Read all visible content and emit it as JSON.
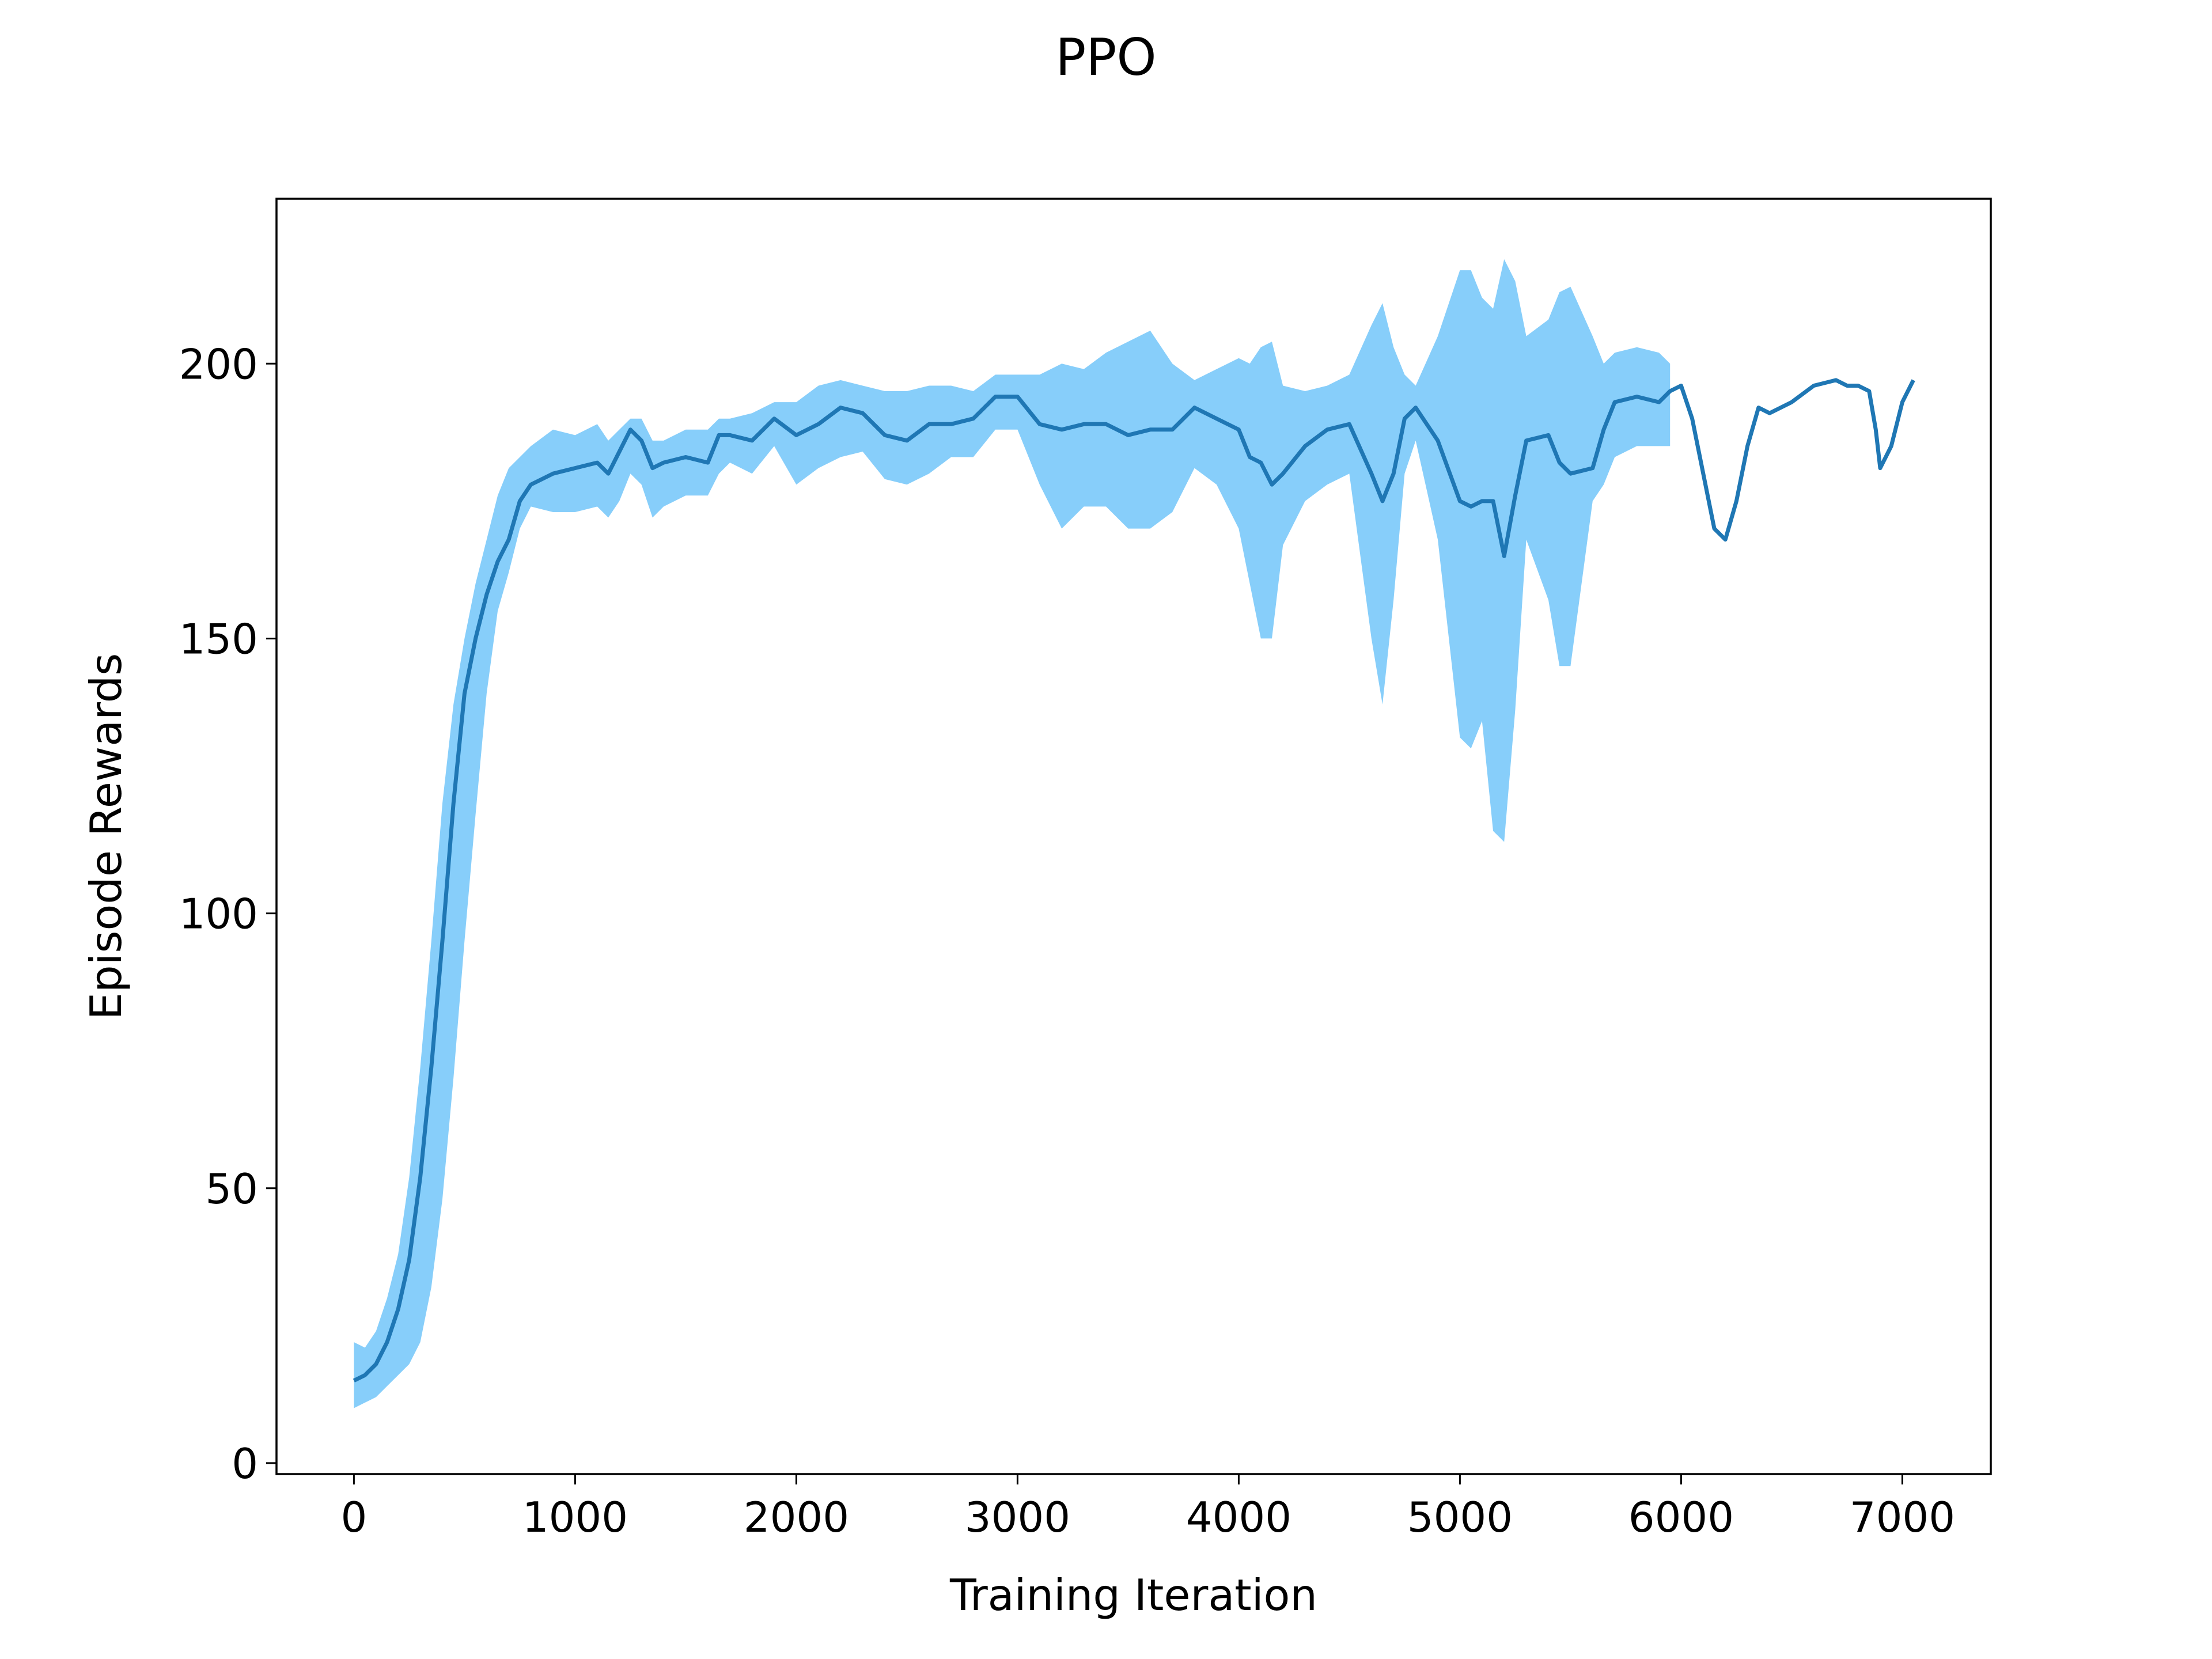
{
  "chart_data": {
    "type": "line",
    "title": "PPO",
    "xlabel": "Training Iteration",
    "ylabel": "Episode Rewards",
    "xlim": [
      -350,
      7400
    ],
    "ylim": [
      -2,
      230
    ],
    "grid": false,
    "legend": "none",
    "xticks": [
      0,
      1000,
      2000,
      3000,
      4000,
      5000,
      6000,
      7000
    ],
    "xtick_labels": [
      "0",
      "1000",
      "2000",
      "3000",
      "4000",
      "5000",
      "6000",
      "7000"
    ],
    "yticks": [
      0,
      50,
      100,
      150,
      200
    ],
    "ytick_labels": [
      "0",
      "50",
      "100",
      "150",
      "200"
    ],
    "colors": {
      "mean_line": "#1f77b4",
      "band": "#87cefa"
    },
    "series": [
      {
        "kind": "mean",
        "x": [
          0,
          50,
          100,
          150,
          200,
          250,
          300,
          350,
          400,
          450,
          500,
          550,
          600,
          650,
          700,
          750,
          800,
          900,
          1000,
          1100,
          1150,
          1200,
          1250,
          1300,
          1350,
          1400,
          1500,
          1600,
          1650,
          1700,
          1800,
          1900,
          2000,
          2100,
          2200,
          2300,
          2400,
          2500,
          2600,
          2700,
          2800,
          2900,
          3000,
          3100,
          3200,
          3300,
          3400,
          3500,
          3600,
          3700,
          3800,
          3900,
          4000,
          4050,
          4100,
          4150,
          4200,
          4300,
          4400,
          4500,
          4600,
          4650,
          4700,
          4750,
          4800,
          4900,
          5000,
          5050,
          5100,
          5150,
          5200,
          5250,
          5300,
          5400,
          5450,
          5500,
          5600,
          5650,
          5700,
          5800,
          5900,
          5950,
          6000,
          6050,
          6100,
          6150,
          6200,
          6250,
          6300,
          6350,
          6400,
          6500,
          6600,
          6700,
          6750,
          6800,
          6850,
          6880,
          6900,
          6950,
          7000,
          7050
        ],
        "y": [
          15,
          16,
          18,
          22,
          28,
          37,
          52,
          72,
          95,
          120,
          140,
          150,
          158,
          164,
          168,
          175,
          178,
          180,
          181,
          182,
          180,
          184,
          188,
          186,
          181,
          182,
          183,
          182,
          187,
          187,
          186,
          190,
          187,
          189,
          192,
          191,
          187,
          186,
          189,
          189,
          190,
          194,
          194,
          189,
          188,
          189,
          189,
          187,
          188,
          188,
          192,
          190,
          188,
          183,
          182,
          178,
          180,
          185,
          188,
          189,
          180,
          175,
          180,
          190,
          192,
          186,
          175,
          174,
          175,
          175,
          165,
          176,
          186,
          187,
          182,
          180,
          181,
          188,
          193,
          194,
          193,
          195,
          196,
          190,
          180,
          170,
          168,
          175,
          185,
          192,
          191,
          193,
          196,
          197,
          196,
          196,
          195,
          188,
          181,
          185,
          193,
          197
        ]
      },
      {
        "kind": "band",
        "x": [
          0,
          50,
          100,
          150,
          200,
          250,
          300,
          350,
          400,
          450,
          500,
          550,
          600,
          650,
          700,
          750,
          800,
          900,
          1000,
          1100,
          1150,
          1200,
          1250,
          1300,
          1350,
          1400,
          1500,
          1600,
          1650,
          1700,
          1800,
          1900,
          2000,
          2100,
          2200,
          2300,
          2400,
          2500,
          2600,
          2700,
          2800,
          2900,
          3000,
          3100,
          3200,
          3300,
          3400,
          3500,
          3600,
          3700,
          3800,
          3900,
          4000,
          4050,
          4100,
          4150,
          4200,
          4300,
          4400,
          4500,
          4600,
          4650,
          4700,
          4750,
          4800,
          4900,
          5000,
          5050,
          5100,
          5150,
          5200,
          5250,
          5300,
          5400,
          5450,
          5500,
          5600,
          5650,
          5700,
          5800,
          5900,
          5950
        ],
        "upper": [
          22,
          21,
          24,
          30,
          38,
          52,
          72,
          95,
          120,
          138,
          150,
          160,
          168,
          176,
          181,
          183,
          185,
          188,
          187,
          189,
          186,
          188,
          190,
          190,
          186,
          186,
          188,
          188,
          190,
          190,
          191,
          193,
          193,
          196,
          197,
          196,
          195,
          195,
          196,
          196,
          195,
          198,
          198,
          198,
          200,
          199,
          202,
          204,
          206,
          200,
          197,
          199,
          201,
          200,
          203,
          204,
          196,
          195,
          196,
          198,
          207,
          211,
          203,
          198,
          196,
          205,
          217,
          217,
          212,
          210,
          219,
          215,
          205,
          208,
          213,
          214,
          205,
          200,
          202,
          203,
          202,
          200
        ],
        "lower": [
          10,
          11,
          12,
          14,
          16,
          18,
          22,
          32,
          48,
          70,
          95,
          118,
          140,
          155,
          162,
          170,
          174,
          173,
          173,
          174,
          172,
          175,
          180,
          178,
          172,
          174,
          176,
          176,
          180,
          182,
          180,
          185,
          178,
          181,
          183,
          184,
          179,
          178,
          180,
          183,
          183,
          188,
          188,
          178,
          170,
          174,
          174,
          170,
          170,
          173,
          181,
          178,
          170,
          160,
          150,
          150,
          167,
          175,
          178,
          180,
          150,
          138,
          157,
          180,
          186,
          168,
          132,
          130,
          135,
          115,
          113,
          137,
          168,
          157,
          145,
          145,
          175,
          178,
          183,
          185,
          185,
          185
        ]
      }
    ]
  }
}
